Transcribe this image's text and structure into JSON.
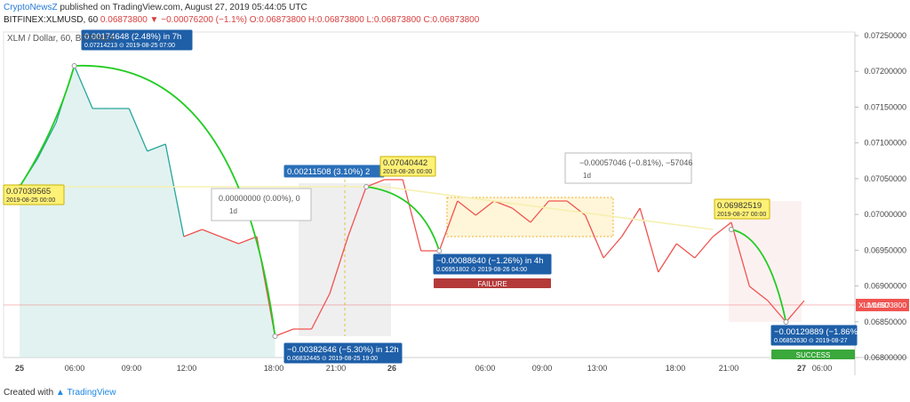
{
  "header": {
    "brand": "CryptoNewsZ",
    "published": " published on TradingView.com, August 27, 2019 05:44:05 UTC",
    "symbol": "BITFINEX:XLMUSD, 60",
    "last": "0.06873800",
    "change": "▼ −0.00076200 (−1.1%)",
    "ohlc": "O:0.06873800 H:0.06873800 L:0.06873800 C:0.06873800"
  },
  "footer": {
    "created_with": "Created with",
    "tv": "TradingView"
  },
  "chart_data": {
    "type": "line",
    "legend_label": "XLM / Dollar, 60, BITFINEX",
    "ylim": [
      0.068,
      0.0725
    ],
    "ytick_labels": [
      "0.07250000",
      "0.07200000",
      "0.07150000",
      "0.07100000",
      "0.07050000",
      "0.07000000",
      "0.06950000",
      "0.06900000",
      "0.06850000",
      "0.06800000"
    ],
    "xtick_labels": [
      "25",
      "06:00",
      "09:00",
      "12:00",
      "18:00",
      "21:00",
      "26",
      "06:00",
      "09:00",
      "13:00",
      "18:00",
      "21:00",
      "27",
      "06:00"
    ],
    "last_label": "XLMUSD",
    "last_value": "0.06873800",
    "series": [
      {
        "values": [
          0.0704,
          0.0708,
          0.0713,
          0.0721,
          0.0715,
          0.0715,
          0.0715,
          0.0709,
          0.071,
          0.0697,
          0.0698,
          0.0697,
          0.0696,
          0.0697,
          0.0683,
          0.0684,
          0.0684,
          0.0689,
          0.0697,
          0.0704,
          0.0705,
          0.0705,
          0.0695,
          0.0695,
          0.0702,
          0.07,
          0.0702,
          0.0701,
          0.0699,
          0.0702,
          0.0702,
          0.07,
          0.0694,
          0.0697,
          0.0701,
          0.0692,
          0.0696,
          0.0694,
          0.0697,
          0.0699,
          0.069,
          0.0688,
          0.0685,
          0.0688
        ]
      }
    ],
    "trendline": {
      "from": "0.07039565",
      "to": "0.06982519"
    },
    "annotations": {
      "rise": {
        "line1": "0.00174648 (2.48%) in 7h",
        "line2": "0.07214213 ⊙ 2019-08-25 07:00"
      },
      "drop": {
        "line1": "−0.00382646 (−5.30%) in 12h",
        "line2": "0.06832445 ⊙ 2019-08-25 19:00"
      },
      "drop2": {
        "line1": "−0.00088640 (−1.26%) in 4h",
        "line2": "0.06951802 ⊙ 2019-08-26 04:00"
      },
      "drop3": {
        "line1": "−0.00129889 (−1.86%",
        "line2": "0.06852630 ⊙ 2019-08-27"
      },
      "range_up": "0.00211508 (3.10%) 2",
      "failure": "FAILURE",
      "success": "SUCCESS",
      "start_point": {
        "value": "0.07039565",
        "date": "2019-08-25 00:00"
      },
      "peak_point": {
        "value": "0.07040442",
        "date": "2019-08-26 00:00"
      },
      "end_point": {
        "value": "0.06982519",
        "date": "2019-08-27 00:00"
      },
      "box1": {
        "line1": "0.00000000 (0.00%), 0",
        "line2": "1d"
      },
      "box2": {
        "line1": "−0.00057046 (−0.81%), −57046",
        "line2": "1d"
      }
    },
    "colors": {
      "up": "#26a69a",
      "down": "#ef5350",
      "trend": "#f5f0b0",
      "arrow": "#22cc22",
      "label_blue": "#1e5fa8",
      "label_yellow": "#fff176"
    }
  }
}
